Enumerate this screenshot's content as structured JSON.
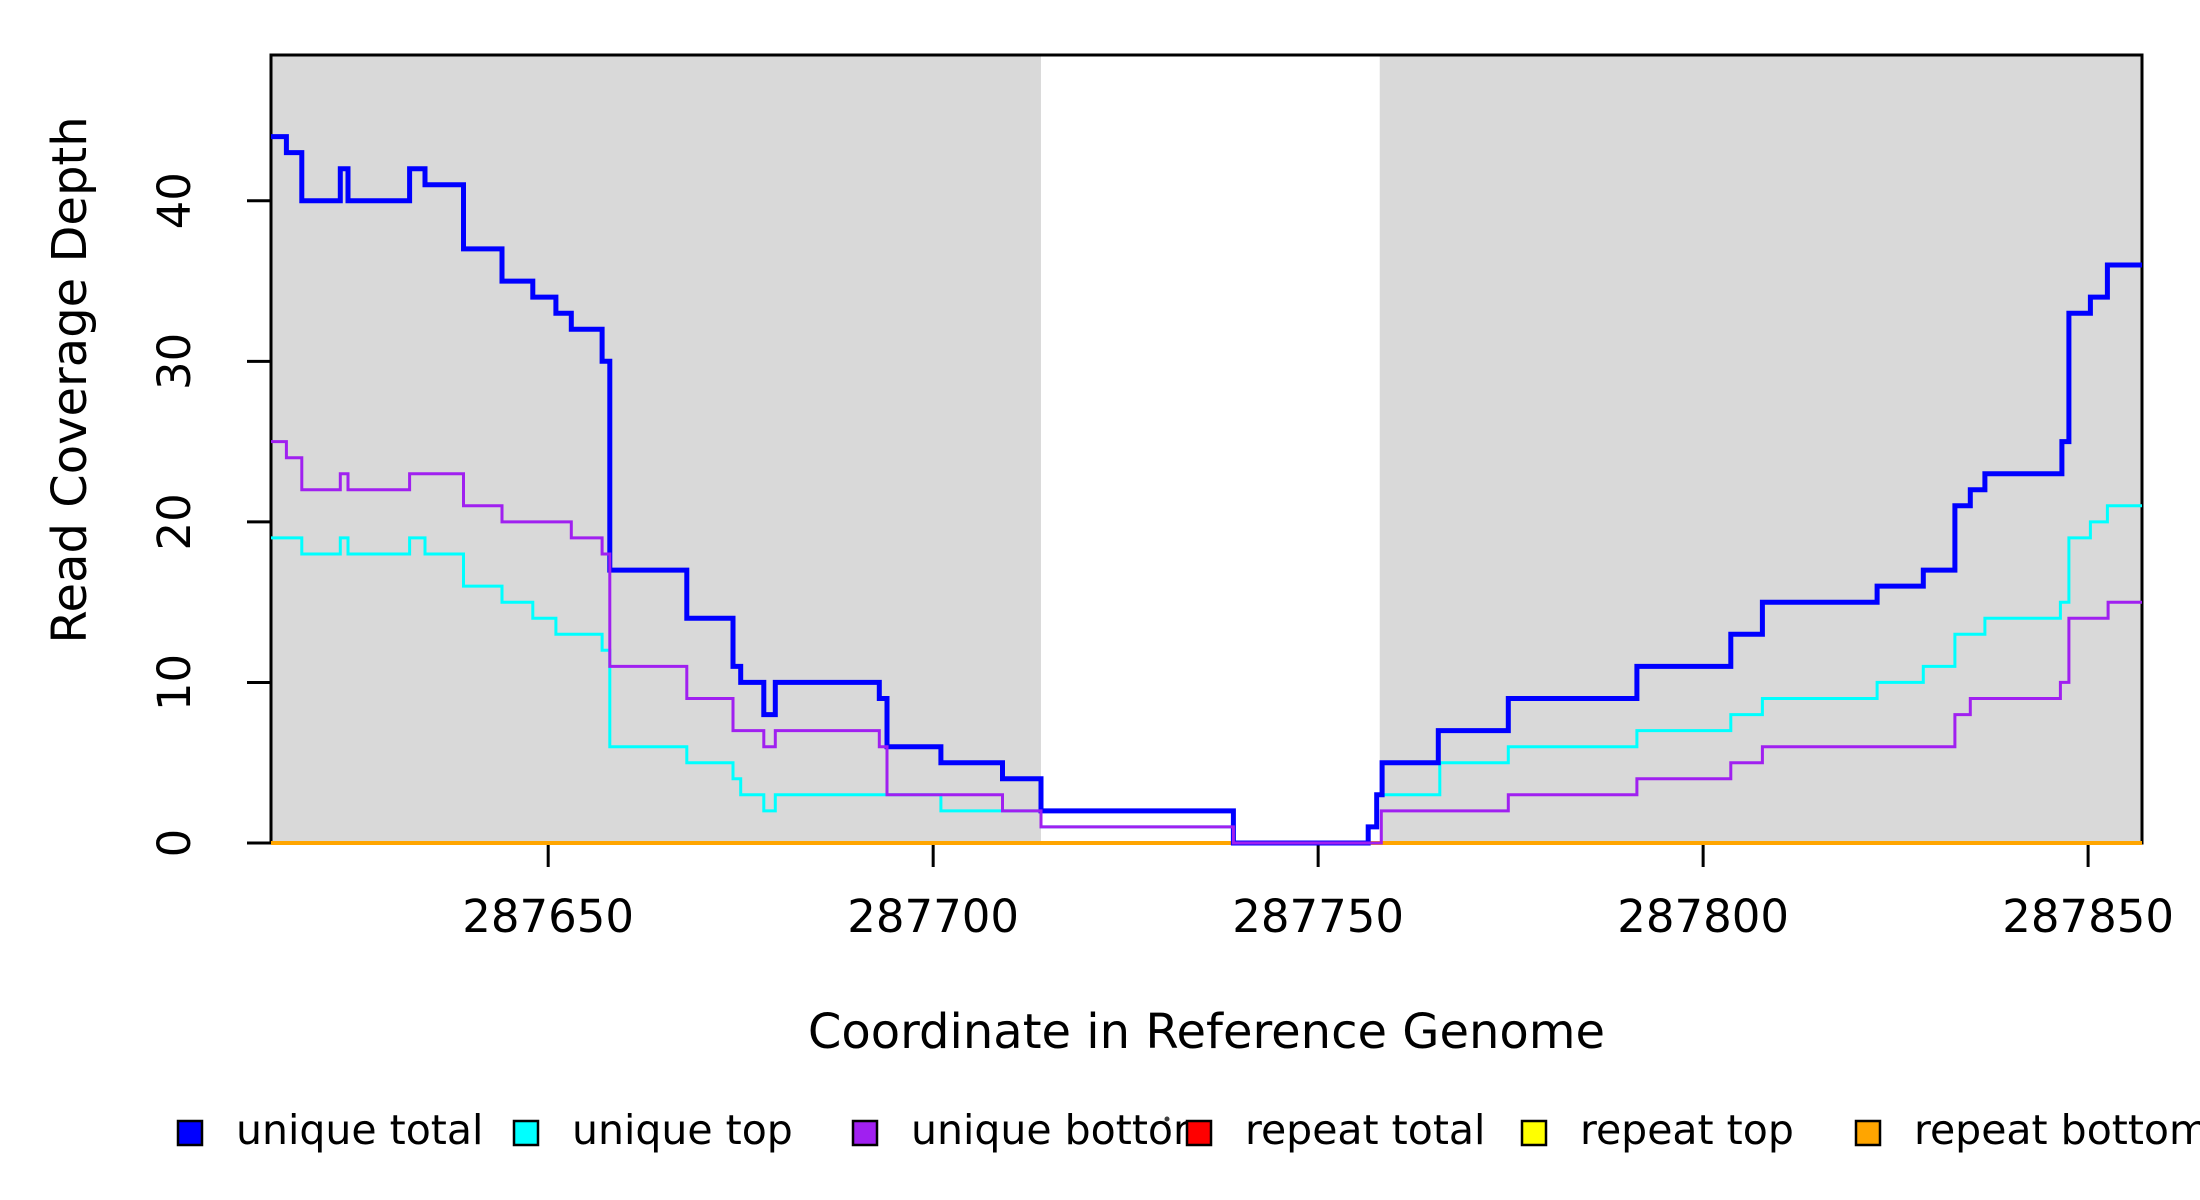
{
  "figure": {
    "background": "#ffffff",
    "plot_background_shaded": "#d9d9d9",
    "box_color": "#000000"
  },
  "chart_data": {
    "type": "line",
    "subtype": "step-post",
    "title": "",
    "xlabel": "Coordinate in Reference Genome",
    "ylabel": "Read Coverage Depth",
    "xlim": [
      287614,
      287857
    ],
    "ylim": [
      0,
      49
    ],
    "grid": "off",
    "legend_position": "bottom",
    "x_ticks": [
      {
        "value": 287650,
        "label": "287650"
      },
      {
        "value": 287700,
        "label": "287700"
      },
      {
        "value": 287750,
        "label": "287750"
      },
      {
        "value": 287800,
        "label": "287800"
      },
      {
        "value": 287850,
        "label": "287850"
      }
    ],
    "y_ticks": [
      {
        "value": 0,
        "label": "0"
      },
      {
        "value": 10,
        "label": "10"
      },
      {
        "value": 20,
        "label": "20"
      },
      {
        "value": 30,
        "label": "30"
      },
      {
        "value": 40,
        "label": "40"
      }
    ],
    "shaded_regions": [
      {
        "x0": 287614,
        "x1": 287714,
        "color": "#d9d9d9"
      },
      {
        "x0": 287758,
        "x1": 287857,
        "color": "#d9d9d9"
      }
    ],
    "series": [
      {
        "name": "repeat total",
        "color": "#ff0000",
        "line_width": 2.5,
        "steps": [
          [
            287614,
            0
          ]
        ]
      },
      {
        "name": "repeat top",
        "color": "#ffff00",
        "line_width": 2.5,
        "steps": [
          [
            287614,
            0
          ]
        ]
      },
      {
        "name": "repeat bottom",
        "color": "#ffa500",
        "line_width": 4,
        "steps": [
          [
            287614,
            0
          ]
        ]
      },
      {
        "name": "unique top",
        "color": "#00ffff",
        "line_width": 3,
        "steps": [
          [
            287614,
            19
          ],
          [
            287618,
            18
          ],
          [
            287623,
            19
          ],
          [
            287624,
            18
          ],
          [
            287632,
            19
          ],
          [
            287634,
            18
          ],
          [
            287639,
            16
          ],
          [
            287644,
            15
          ],
          [
            287648,
            14
          ],
          [
            287651,
            13
          ],
          [
            287657,
            12
          ],
          [
            287658,
            6
          ],
          [
            287668,
            5
          ],
          [
            287674,
            4
          ],
          [
            287675,
            3
          ],
          [
            287678,
            2
          ],
          [
            287679.5,
            3
          ],
          [
            287701,
            2
          ],
          [
            287714,
            1
          ],
          [
            287739,
            0
          ],
          [
            287756.5,
            1
          ],
          [
            287757.6,
            3
          ],
          [
            287765.8,
            5
          ],
          [
            287774.7,
            6
          ],
          [
            287791.4,
            7
          ],
          [
            287803.6,
            8
          ],
          [
            287807.7,
            9
          ],
          [
            287822.6,
            10
          ],
          [
            287828.6,
            11
          ],
          [
            287832.7,
            13
          ],
          [
            287836.6,
            14
          ],
          [
            287846.4,
            15
          ],
          [
            287847.5,
            19
          ],
          [
            287850.3,
            20
          ],
          [
            287852.5,
            21
          ]
        ]
      },
      {
        "name": "unique total",
        "color": "#0000ff",
        "line_width": 5,
        "steps": [
          [
            287614,
            44
          ],
          [
            287616,
            43
          ],
          [
            287618,
            40
          ],
          [
            287623,
            42
          ],
          [
            287624,
            40
          ],
          [
            287632,
            42
          ],
          [
            287634,
            41
          ],
          [
            287639,
            37
          ],
          [
            287644,
            35
          ],
          [
            287648,
            34
          ],
          [
            287651,
            33
          ],
          [
            287653,
            32
          ],
          [
            287657,
            30
          ],
          [
            287658,
            17
          ],
          [
            287668,
            14
          ],
          [
            287674,
            11
          ],
          [
            287675,
            10
          ],
          [
            287678,
            8
          ],
          [
            287679.5,
            10
          ],
          [
            287693,
            9
          ],
          [
            287694,
            6
          ],
          [
            287701,
            5
          ],
          [
            287709,
            4
          ],
          [
            287714,
            2
          ],
          [
            287739,
            0
          ],
          [
            287756.5,
            1
          ],
          [
            287757.6,
            3
          ],
          [
            287758.3,
            5
          ],
          [
            287765.6,
            7
          ],
          [
            287774.7,
            9
          ],
          [
            287791.4,
            11
          ],
          [
            287803.6,
            13
          ],
          [
            287807.7,
            15
          ],
          [
            287822.6,
            16
          ],
          [
            287828.6,
            17
          ],
          [
            287832.7,
            21
          ],
          [
            287834.7,
            22
          ],
          [
            287836.6,
            23
          ],
          [
            287846.6,
            25
          ],
          [
            287847.5,
            33
          ],
          [
            287850.3,
            34
          ],
          [
            287852.5,
            36
          ]
        ]
      },
      {
        "name": "unique bottom",
        "color": "#a020f0",
        "line_width": 3,
        "steps": [
          [
            287614,
            25
          ],
          [
            287616,
            24
          ],
          [
            287618,
            22
          ],
          [
            287623,
            23
          ],
          [
            287624,
            22
          ],
          [
            287632,
            23
          ],
          [
            287639,
            21
          ],
          [
            287644,
            20
          ],
          [
            287653,
            19
          ],
          [
            287657,
            18
          ],
          [
            287658,
            11
          ],
          [
            287668,
            9
          ],
          [
            287674,
            7
          ],
          [
            287678,
            6
          ],
          [
            287679.5,
            7
          ],
          [
            287693,
            6
          ],
          [
            287694,
            3
          ],
          [
            287709,
            2
          ],
          [
            287714,
            1
          ],
          [
            287739,
            0
          ],
          [
            287758.2,
            2
          ],
          [
            287774.7,
            3
          ],
          [
            287791.4,
            4
          ],
          [
            287803.6,
            5
          ],
          [
            287807.7,
            6
          ],
          [
            287832.7,
            8
          ],
          [
            287834.7,
            9
          ],
          [
            287846.4,
            10
          ],
          [
            287847.5,
            14
          ],
          [
            287852.6,
            15
          ]
        ]
      }
    ],
    "legend": [
      {
        "label": "unique total",
        "color": "#0000ff"
      },
      {
        "label": "unique top",
        "color": "#00ffff"
      },
      {
        "label": "unique bottom",
        "color": "#a020f0"
      },
      {
        "label": "repeat total",
        "color": "#ff0000"
      },
      {
        "label": "repeat top",
        "color": "#ffff00"
      },
      {
        "label": "repeat bottom",
        "color": "#ffa500"
      }
    ],
    "stray_mark": {
      "glyph": "dot",
      "color": "#404040"
    }
  }
}
